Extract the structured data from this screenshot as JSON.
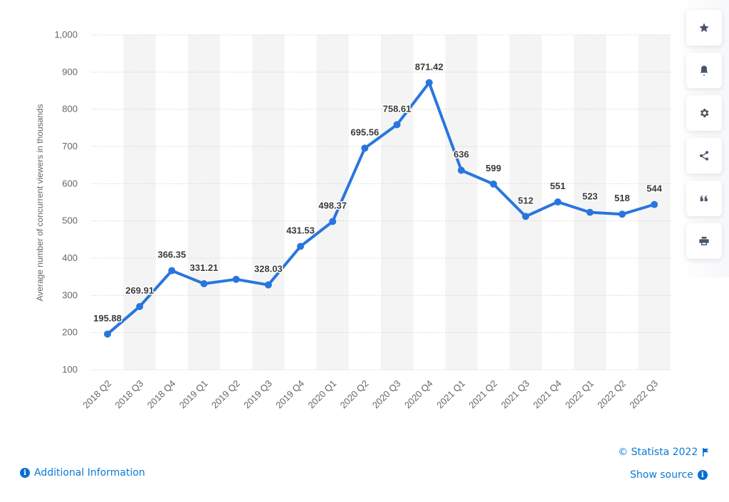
{
  "chart_data": {
    "type": "line",
    "title": "",
    "xlabel": "",
    "ylabel": "Average number of concurrent viewers in thousands",
    "ylim": [
      100,
      1000
    ],
    "yticks": [
      100,
      200,
      300,
      400,
      500,
      600,
      700,
      800,
      900,
      1000
    ],
    "ytick_labels": [
      "100",
      "200",
      "300",
      "400",
      "500",
      "600",
      "700",
      "800",
      "900",
      "1,000"
    ],
    "grid": true,
    "categories": [
      "2018 Q2",
      "2018 Q3",
      "2018 Q4",
      "2019 Q1",
      "2019 Q2",
      "2019 Q3",
      "2019 Q4",
      "2020 Q1",
      "2020 Q2",
      "2020 Q3",
      "2020 Q4",
      "2021 Q1",
      "2021 Q2",
      "2021 Q3",
      "2021 Q4",
      "2022 Q1",
      "2022 Q2",
      "2022 Q3"
    ],
    "series": [
      {
        "name": "Average concurrent viewers",
        "color": "#2876dd",
        "values": [
          195.88,
          269.91,
          366.35,
          331.21,
          343,
          328.03,
          431.53,
          498.37,
          695.56,
          758.61,
          871.42,
          636,
          599,
          512,
          551,
          523,
          518,
          544
        ],
        "labels": [
          "195.88",
          "269.91",
          "366.35",
          "331.21",
          "",
          "328.03",
          "431.53",
          "498.37",
          "695.56",
          "758.61",
          "871.42",
          "636",
          "599",
          "512",
          "551",
          "523",
          "518",
          "544"
        ]
      }
    ]
  },
  "sidebar": {
    "buttons": [
      {
        "name": "favorite",
        "icon": "star-icon"
      },
      {
        "name": "notify",
        "icon": "bell-icon"
      },
      {
        "name": "settings",
        "icon": "gear-icon"
      },
      {
        "name": "share",
        "icon": "share-icon"
      },
      {
        "name": "cite",
        "icon": "quote-icon"
      },
      {
        "name": "print",
        "icon": "printer-icon"
      }
    ]
  },
  "footer": {
    "additional_info": "Additional Information",
    "copyright": "© Statista 2022",
    "show_source": "Show source",
    "info_glyph": "i"
  }
}
